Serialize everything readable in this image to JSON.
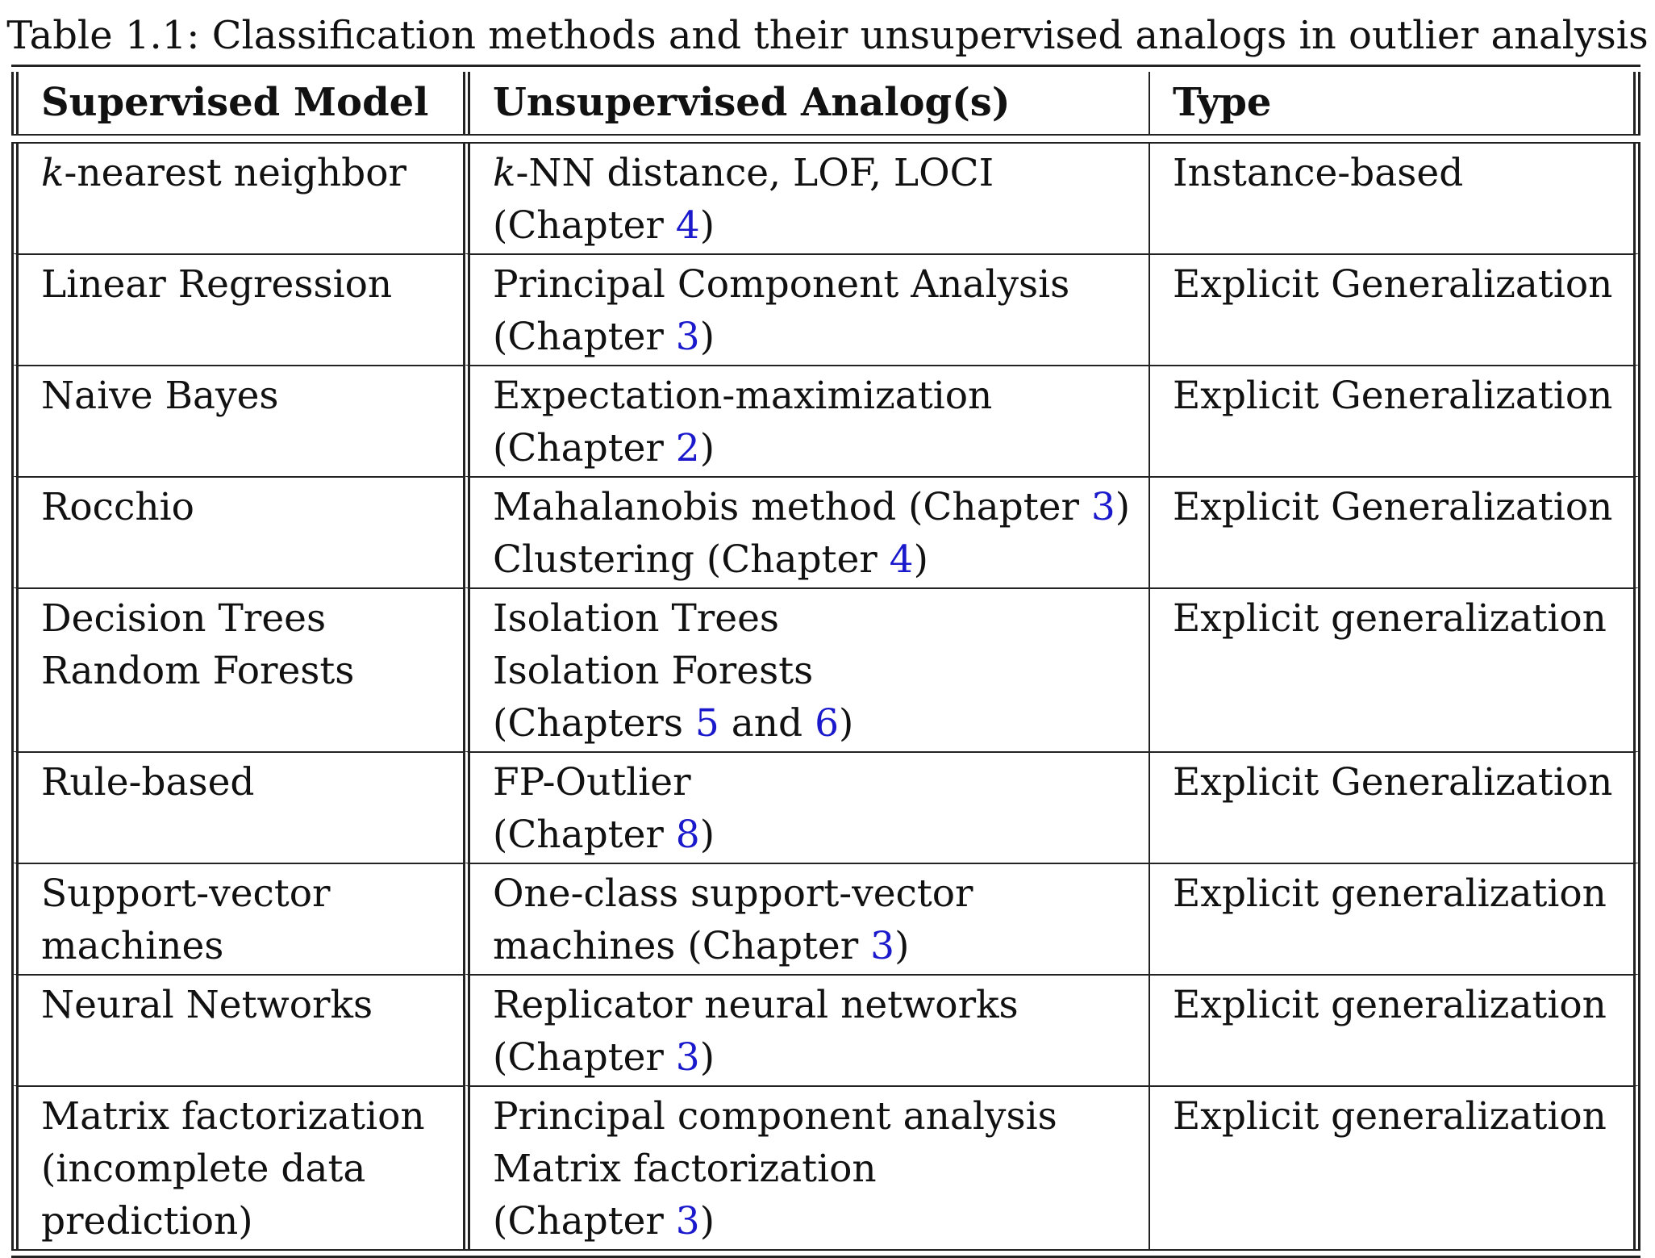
{
  "caption": "Table 1.1: Classification methods and their unsupervised analogs in outlier analysis",
  "headers": [
    "Supervised Model",
    "Unsupervised Analog(s)",
    "Type"
  ],
  "rows": [
    {
      "model": [
        "k-nearest neighbor"
      ],
      "analog": [
        {
          "text": "k-NN distance, LOF, LOCI"
        },
        {
          "text": "(Chapter ",
          "ref": "4",
          "after": ")"
        }
      ],
      "type": "Instance-based"
    },
    {
      "model": [
        "Linear Regression"
      ],
      "analog": [
        {
          "text": "Principal Component Analysis"
        },
        {
          "text": "(Chapter ",
          "ref": "3",
          "after": ")"
        }
      ],
      "type": "Explicit Generalization"
    },
    {
      "model": [
        "Naive Bayes"
      ],
      "analog": [
        {
          "text": "Expectation-maximization"
        },
        {
          "text": "(Chapter ",
          "ref": "2",
          "after": ")"
        }
      ],
      "type": "Explicit Generalization"
    },
    {
      "model": [
        "Rocchio"
      ],
      "analog": [
        {
          "text": "Mahalanobis method (Chapter ",
          "ref": "3",
          "after": ")"
        },
        {
          "text": "Clustering (Chapter ",
          "ref": "4",
          "after": ")"
        }
      ],
      "type": "Explicit Generalization"
    },
    {
      "model": [
        "Decision Trees",
        "Random Forests"
      ],
      "analog": [
        {
          "text": "Isolation Trees"
        },
        {
          "text": "Isolation Forests"
        },
        {
          "text": "(Chapters ",
          "ref": "5",
          "mid": " and ",
          "ref2": "6",
          "after": ")"
        }
      ],
      "type": "Explicit generalization"
    },
    {
      "model": [
        "Rule-based"
      ],
      "analog": [
        {
          "text": "FP-Outlier"
        },
        {
          "text": "(Chapter ",
          "ref": "8",
          "after": ")"
        }
      ],
      "type": "Explicit Generalization"
    },
    {
      "model": [
        "Support-vector",
        "machines"
      ],
      "analog": [
        {
          "text": "One-class support-vector"
        },
        {
          "text": "machines (Chapter ",
          "ref": "3",
          "after": ")"
        }
      ],
      "type": "Explicit generalization"
    },
    {
      "model": [
        "Neural Networks"
      ],
      "analog": [
        {
          "text": "Replicator neural networks"
        },
        {
          "text": "(Chapter ",
          "ref": "3",
          "after": ")"
        }
      ],
      "type": "Explicit generalization"
    },
    {
      "model": [
        "Matrix factorization",
        "(incomplete data",
        "prediction)"
      ],
      "analog": [
        {
          "text": "Principal component analysis"
        },
        {
          "text": "Matrix factorization"
        },
        {
          "text": "(Chapter ",
          "ref": "3",
          "after": ")"
        }
      ],
      "type": "Explicit generalization"
    }
  ],
  "colors": {
    "chapter_ref": "#1a1acc",
    "text": "#111111",
    "rule": "#222222"
  }
}
